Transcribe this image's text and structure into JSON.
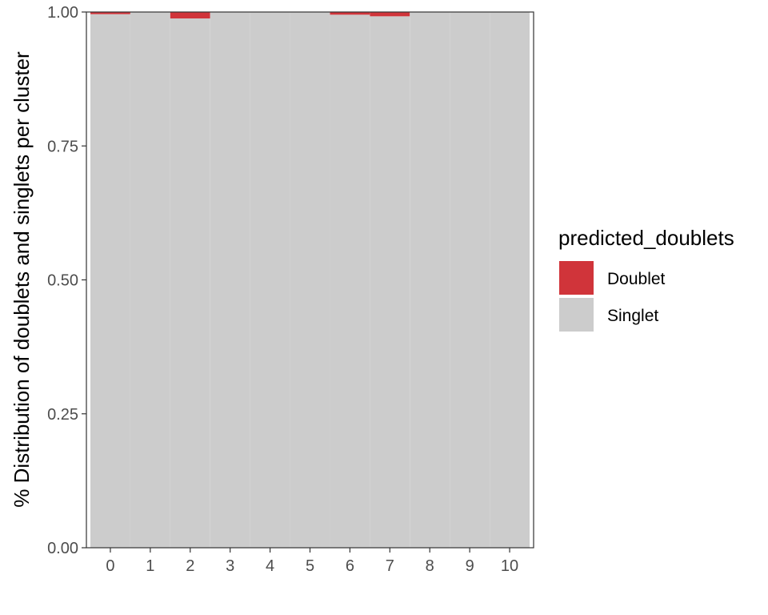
{
  "chart_data": {
    "type": "bar",
    "stacked": true,
    "categories": [
      "0",
      "1",
      "2",
      "3",
      "4",
      "5",
      "6",
      "7",
      "8",
      "9",
      "10"
    ],
    "series": [
      {
        "name": "Doublet",
        "color": "#d0343a",
        "values": [
          0.004,
          0.0,
          0.012,
          0.0,
          0.0,
          0.0,
          0.005,
          0.008,
          0.0,
          0.0,
          0.0
        ]
      },
      {
        "name": "Singlet",
        "color": "#cccccc",
        "values": [
          0.996,
          1.0,
          0.988,
          1.0,
          1.0,
          1.0,
          0.995,
          0.992,
          1.0,
          1.0,
          1.0
        ]
      }
    ],
    "ylabel": "% Distribution of doublets and singlets per cluster",
    "xlabel": "",
    "ylim": [
      0,
      1
    ],
    "yticks": [
      "0.00",
      "0.25",
      "0.50",
      "0.75",
      "1.00"
    ],
    "legend": {
      "title": "predicted_doublets",
      "position": "right"
    },
    "grid": false
  }
}
